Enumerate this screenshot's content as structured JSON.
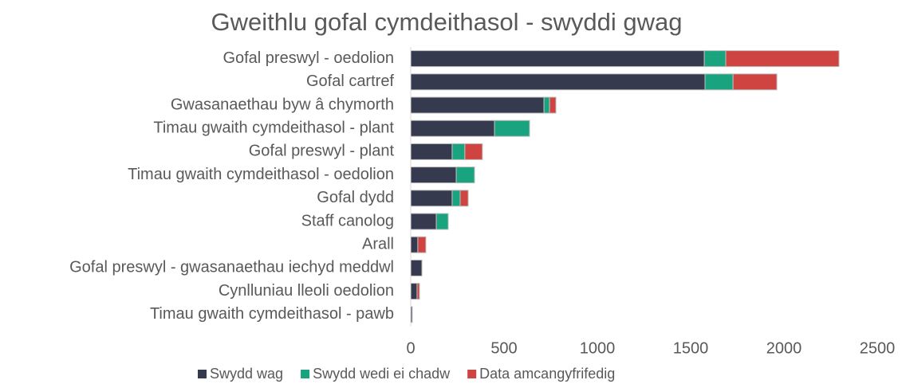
{
  "chart_data": {
    "type": "hbar_stacked",
    "title": "Gweithlu gofal cymdeithasol - swyddi gwag",
    "categories": [
      "Gofal preswyl - oedolion",
      "Gofal cartref",
      "Gwasanaethau byw â chymorth",
      "Timau gwaith cymdeithasol - plant",
      "Gofal preswyl - plant",
      "Timau gwaith cymdeithasol - oedolion",
      "Gofal dydd",
      "Staff canolog",
      "Arall",
      "Gofal preswyl - gwasanaethau iechyd meddwl",
      "Cynlluniau lleoli oedolion",
      "Timau gwaith cymdeithasol - pawb"
    ],
    "series": [
      {
        "name": "Swydd wag",
        "color": "#363a4f",
        "values": [
          1573,
          1577,
          714,
          449,
          222,
          244,
          222,
          137,
          38,
          60,
          34,
          8
        ]
      },
      {
        "name": "Swydd wedi ei chadw",
        "color": "#1aa37f",
        "values": [
          115,
          150,
          30,
          188,
          68,
          98,
          43,
          64,
          0,
          0,
          0,
          0
        ]
      },
      {
        "name": "Data amcangyfrifedig",
        "color": "#cf4440",
        "values": [
          607,
          235,
          34,
          0,
          94,
          0,
          43,
          0,
          43,
          0,
          13,
          0
        ]
      }
    ],
    "xlim": [
      0,
      2500
    ],
    "xticks": [
      0,
      500,
      1000,
      1500,
      2000,
      2500
    ],
    "legend": "bottom"
  }
}
